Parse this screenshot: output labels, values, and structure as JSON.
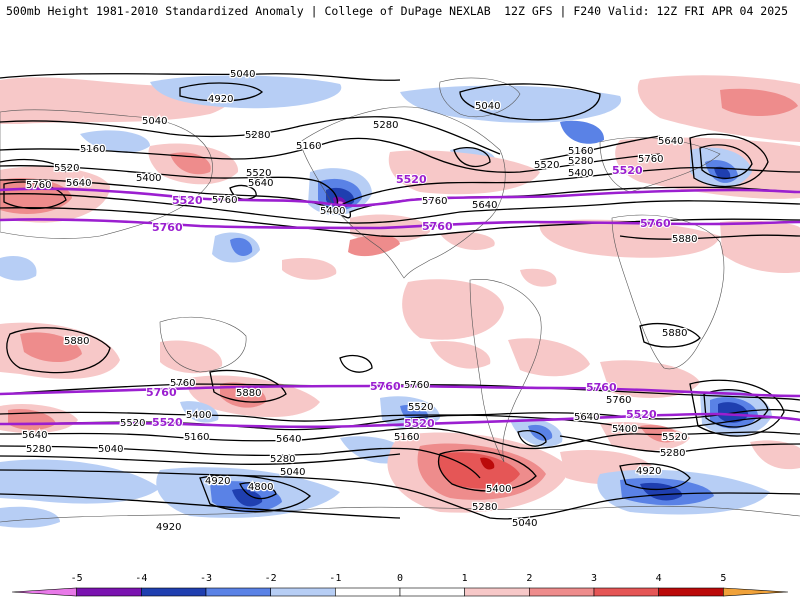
{
  "header": {
    "left": "500mb Height 1981-2010 Standardized Anomaly | College of DuPage NEXLAB",
    "right": "12Z GFS | F240 Valid: 12Z FRI APR 04 2025"
  },
  "colors": {
    "neg5": "#e879e8",
    "neg4": "#7a12b0",
    "neg3": "#1f3fb0",
    "neg2": "#5a82e6",
    "neg1": "#b7cef5",
    "neutral": "#ffffff",
    "pos1": "#f7c8c8",
    "pos2": "#ee8c8c",
    "pos3": "#e55656",
    "pos4": "#bb0a0a",
    "pos5": "#f0a23a",
    "land_line": "#555555",
    "contour": "#000000",
    "highlight": "#9b1fd0"
  },
  "map": {
    "contour_labels": {
      "c4800": "4800",
      "c4920": "4920",
      "c5040": "5040",
      "c5160": "5160",
      "c5280": "5280",
      "c5400": "5400",
      "c5520": "5520",
      "c5640": "5640",
      "c5760": "5760",
      "c5880": "5880"
    }
  },
  "colorbar": {
    "ticks": [
      "-5",
      "-4",
      "-3",
      "-2",
      "-1",
      "0",
      "1",
      "2",
      "3",
      "4",
      "5"
    ]
  }
}
